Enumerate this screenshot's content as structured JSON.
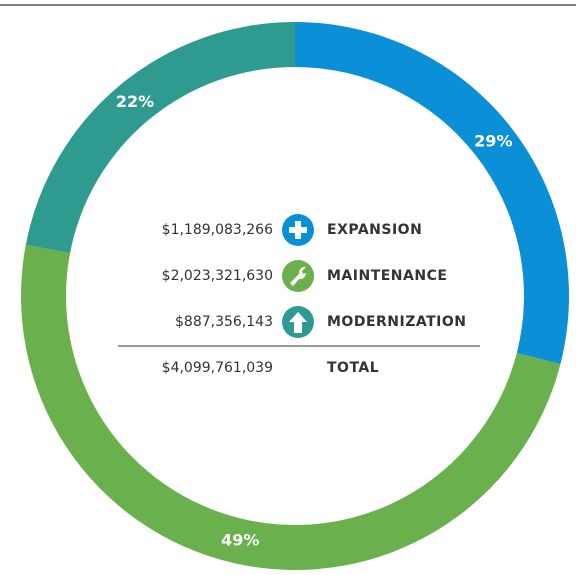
{
  "chart_data": {
    "type": "donut",
    "categories": [
      "EXPANSION",
      "MAINTENANCE",
      "MODERNIZATION"
    ],
    "values": [
      29,
      49,
      22
    ],
    "value_labels": [
      "29%",
      "49%",
      "22%"
    ],
    "colors": [
      "#0b8fd7",
      "#6ab04c",
      "#2f9a8f"
    ],
    "amount_labels": [
      "$1,189,083,266",
      "$2,023,321,630",
      "$887,356,143"
    ],
    "total_label": "TOTAL",
    "total_amount": "$4,099,761,039"
  }
}
